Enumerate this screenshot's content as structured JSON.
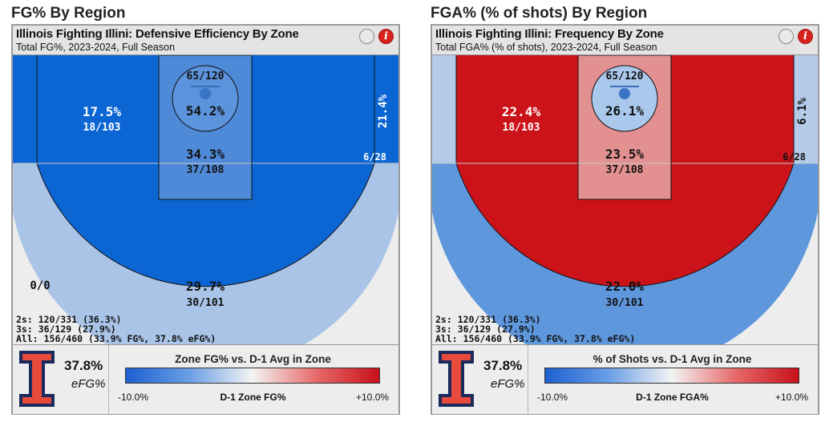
{
  "panels": [
    {
      "section_title": "FG% By Region",
      "card_title": "Illinois Fighting Illini: Defensive Efficiency By Zone",
      "card_subtitle": "Total FG%, 2023-2024, Full Season",
      "efg_value": "37.8%",
      "efg_label": "eFG%",
      "legend_title": "Zone FG% vs. D-1 Avg in Zone",
      "legend_min": "-10.0%",
      "legend_max": "+10.0%",
      "legend_axis_label": "D-1 Zone FG%"
    },
    {
      "section_title": "FGA% (% of shots) By Region",
      "card_title": "Illinois Fighting Illini: Frequency By Zone",
      "card_subtitle": "Total FGA% (% of shots), 2023-2024, Full Season",
      "efg_value": "37.8%",
      "efg_label": "eFG%",
      "legend_title": "% of Shots vs. D-1 Avg in Zone",
      "legend_min": "-10.0%",
      "legend_max": "+10.0%",
      "legend_axis_label": "D-1 Zone FGA%"
    }
  ],
  "chart_data": [
    {
      "type": "shot-chart",
      "metric": "FG%",
      "zones": [
        {
          "zone": "rim",
          "pct": "54.2%",
          "makes_attempts": "65/120",
          "color": "#5b93dd"
        },
        {
          "zone": "paint",
          "pct": "34.3%",
          "makes_attempts": "37/108",
          "color": "#4f8ad8"
        },
        {
          "zone": "midrange",
          "pct": "17.5%",
          "makes_attempts": "18/103",
          "color": "#0b66d4"
        },
        {
          "zone": "corner-three-right",
          "pct": "21.4%",
          "makes_attempts": "6/28",
          "color": "#0b66d4"
        },
        {
          "zone": "corner-three-left",
          "pct": "",
          "makes_attempts": "",
          "color": "#0b66d4"
        },
        {
          "zone": "above-break-three",
          "pct": "29.7%",
          "makes_attempts": "30/101",
          "color": "#a9c4e6"
        },
        {
          "zone": "deep",
          "pct": "",
          "makes_attempts": "0/0",
          "color": "#ededed"
        }
      ],
      "summary": [
        "2s: 120/331 (36.3%)",
        "3s: 36/129 (27.9%)",
        "All: 156/460 (33.9% FG%, 37.8% eFG%)"
      ],
      "color_scale": {
        "min": "-10.0%",
        "max": "+10.0%",
        "low_color": "#1c5fd0",
        "mid_color": "#f4f4f4",
        "high_color": "#c8101a"
      }
    },
    {
      "type": "shot-chart",
      "metric": "FGA% (% of shots)",
      "zones": [
        {
          "zone": "rim",
          "pct": "26.1%",
          "makes_attempts": "65/120",
          "color": "#a9c8ec"
        },
        {
          "zone": "paint",
          "pct": "23.5%",
          "makes_attempts": "37/108",
          "color": "#e29090"
        },
        {
          "zone": "midrange",
          "pct": "22.4%",
          "makes_attempts": "18/103",
          "color": "#cc1319"
        },
        {
          "zone": "corner-three-right",
          "pct": "6.1%",
          "makes_attempts": "6/28",
          "color": "#b3cbe8"
        },
        {
          "zone": "corner-three-left",
          "pct": "",
          "makes_attempts": "",
          "color": "#b3cbe8"
        },
        {
          "zone": "above-break-three",
          "pct": "22.0%",
          "makes_attempts": "30/101",
          "color": "#5e97dc"
        },
        {
          "zone": "deep",
          "pct": "",
          "makes_attempts": "",
          "color": "#ededed"
        }
      ],
      "summary": [
        "2s: 120/331 (36.3%)",
        "3s: 36/129 (27.9%)",
        "All: 156/460 (33.9% FG%, 37.8% eFG%)"
      ],
      "color_scale": {
        "min": "-10.0%",
        "max": "+10.0%",
        "low_color": "#1c5fd0",
        "mid_color": "#f4f4f4",
        "high_color": "#c8101a"
      }
    }
  ]
}
